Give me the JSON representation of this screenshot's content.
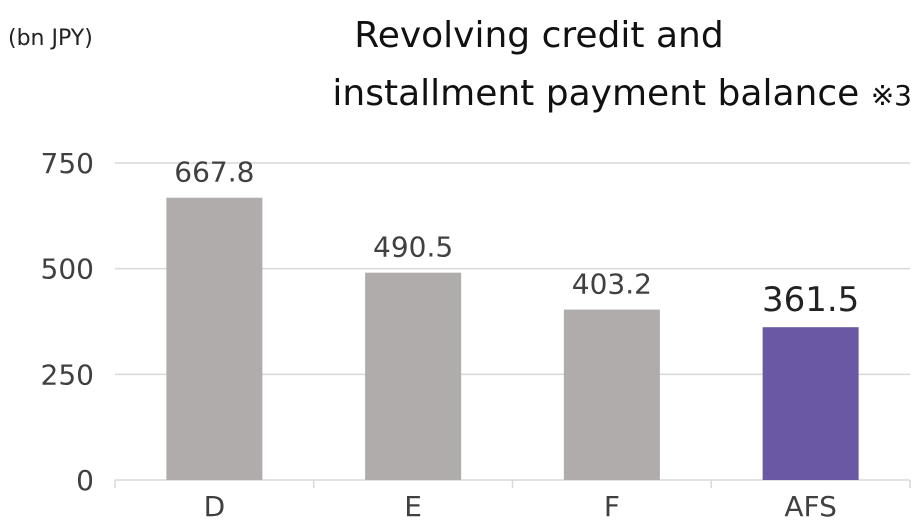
{
  "chart_data": {
    "type": "bar",
    "unit_label": "(bn JPY)",
    "title_line1": "Revolving credit and",
    "title_line2": "installment payment balance",
    "title_note": "※3",
    "categories": [
      "D",
      "E",
      "F",
      "AFS"
    ],
    "values": [
      667.8,
      490.5,
      403.2,
      361.5
    ],
    "data_labels": [
      "667.8",
      "490.5",
      "403.2",
      "361.5"
    ],
    "bar_colors": [
      "#afacab",
      "#afacab",
      "#afacab",
      "#6a58a5"
    ],
    "y_ticks": [
      0,
      250,
      500,
      750
    ],
    "ylim": [
      0,
      750
    ],
    "grid": true,
    "gridline_color": "#d9d9d9"
  }
}
